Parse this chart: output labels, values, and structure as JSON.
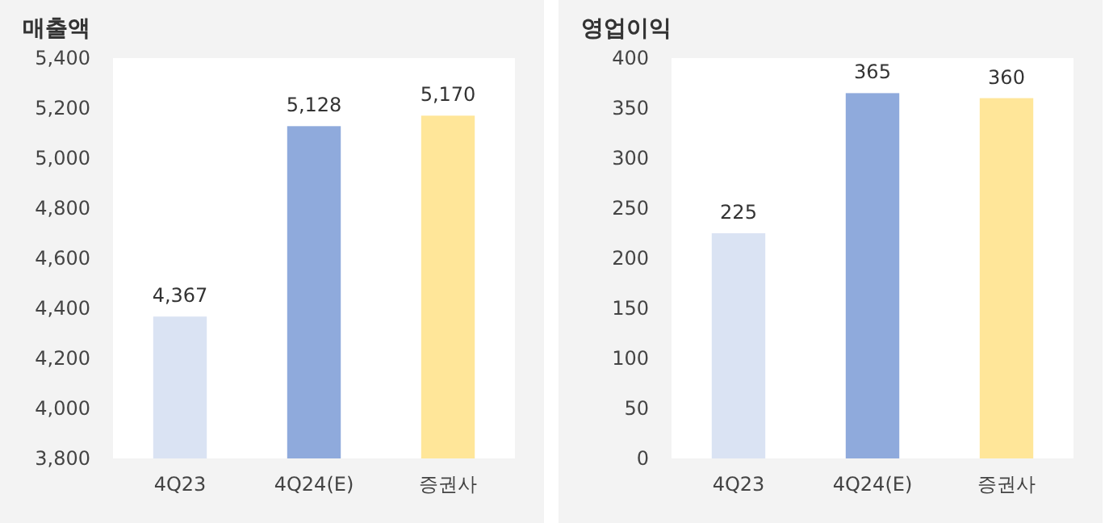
{
  "chart_data": [
    {
      "type": "bar",
      "title": "매출액",
      "categories": [
        "4Q23",
        "4Q24(E)",
        "증권사"
      ],
      "values": [
        4367,
        5128,
        5170
      ],
      "value_labels": [
        "4,367",
        "5,128",
        "5,170"
      ],
      "colors": [
        "#dae3f3",
        "#8faadc",
        "#ffe699"
      ],
      "ylim": [
        3800,
        5400
      ],
      "yticks": [
        {
          "value": 3800,
          "label": "3,800"
        },
        {
          "value": 4000,
          "label": "4,000"
        },
        {
          "value": 4200,
          "label": "4,200"
        },
        {
          "value": 4400,
          "label": "4,400"
        },
        {
          "value": 4600,
          "label": "4,600"
        },
        {
          "value": 4800,
          "label": "4,800"
        },
        {
          "value": 5000,
          "label": "5,000"
        },
        {
          "value": 5200,
          "label": "5,200"
        },
        {
          "value": 5400,
          "label": "5,400"
        }
      ]
    },
    {
      "type": "bar",
      "title": "영업이익",
      "categories": [
        "4Q23",
        "4Q24(E)",
        "증권사"
      ],
      "values": [
        225,
        365,
        360
      ],
      "colors": [
        "#dae3f3",
        "#8faadc",
        "#ffe699"
      ],
      "ylim": [
        0,
        400
      ],
      "yticks": [
        0,
        50,
        100,
        150,
        200,
        250,
        300,
        350,
        400
      ],
      "data_labels": true
    }
  ]
}
